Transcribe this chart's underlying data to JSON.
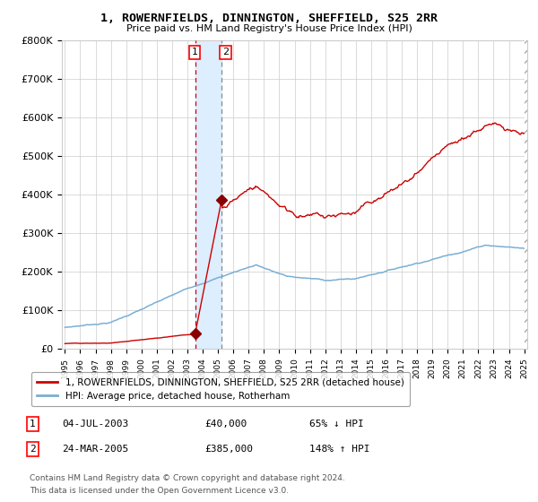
{
  "title": "1, ROWERNFIELDS, DINNINGTON, SHEFFIELD, S25 2RR",
  "subtitle": "Price paid vs. HM Land Registry's House Price Index (HPI)",
  "legend_line1": "1, ROWERNFIELDS, DINNINGTON, SHEFFIELD, S25 2RR (detached house)",
  "legend_line2": "HPI: Average price, detached house, Rotherham",
  "transaction1_label": "1",
  "transaction1_date": "04-JUL-2003",
  "transaction1_price": 40000,
  "transaction1_price_str": "£40,000",
  "transaction1_pct": "65% ↓ HPI",
  "transaction2_label": "2",
  "transaction2_date": "24-MAR-2005",
  "transaction2_price": 385000,
  "transaction2_price_str": "£385,000",
  "transaction2_pct": "148% ↑ HPI",
  "footnote_line1": "Contains HM Land Registry data © Crown copyright and database right 2024.",
  "footnote_line2": "This data is licensed under the Open Government Licence v3.0.",
  "red_line_color": "#cc0000",
  "blue_line_color": "#7aafd4",
  "marker_color": "#880000",
  "vline1_color": "#cc0000",
  "vline2_color": "#888888",
  "highlight_color": "#ddeeff",
  "grid_color": "#cccccc",
  "bg_color": "#ffffff",
  "ylim": [
    0,
    800000
  ],
  "yticks": [
    0,
    100000,
    200000,
    300000,
    400000,
    500000,
    600000,
    700000,
    800000
  ],
  "ytick_labels": [
    "£0",
    "£100K",
    "£200K",
    "£300K",
    "£400K",
    "£500K",
    "£600K",
    "£700K",
    "£800K"
  ],
  "xstart_year": 1995,
  "xend_year": 2025,
  "t1_year": 2003.51,
  "t2_year": 2005.23
}
